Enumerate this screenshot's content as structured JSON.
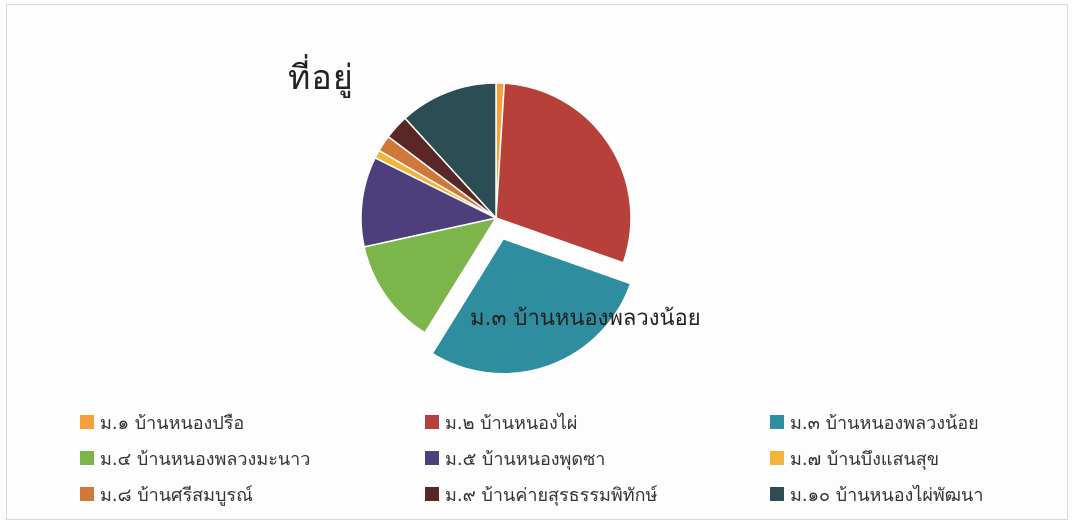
{
  "chart_data": {
    "type": "pie",
    "title": "ที่อยู่",
    "exploded_label": "ม.๓ บ้านหนองพลวงน้อย",
    "slices": [
      {
        "name": "ม.๑  บ้านหนองปรือ",
        "value": 1,
        "color": "#f5a03c"
      },
      {
        "name": "ม.๒  บ้านหนองไผ่",
        "value": 30,
        "color": "#b8403a"
      },
      {
        "name": "ม.๓  บ้านหนองพลวงน้อย",
        "value": 29,
        "color": "#2f8da0",
        "exploded": true
      },
      {
        "name": "ม.๔  บ้านหนองพลวงมะนาว",
        "value": 13,
        "color": "#7cb54a"
      },
      {
        "name": "ม.๕  บ้านหนองพุดซา",
        "value": 11,
        "color": "#4d3f7c"
      },
      {
        "name": "ม.๗  บ้านบึงแสนสุข",
        "value": 1,
        "color": "#f2b53a"
      },
      {
        "name": "ม.๘  บ้านศรีสมบูรณ์",
        "value": 2,
        "color": "#d0783a"
      },
      {
        "name": "ม.๙  บ้านค่ายสุรธรรมพิทักษ์",
        "value": 3,
        "color": "#5a2626"
      },
      {
        "name": "ม.๑๐ บ้านหนองไผ่พัฒนา",
        "value": 12,
        "color": "#2c4d53"
      }
    ]
  }
}
